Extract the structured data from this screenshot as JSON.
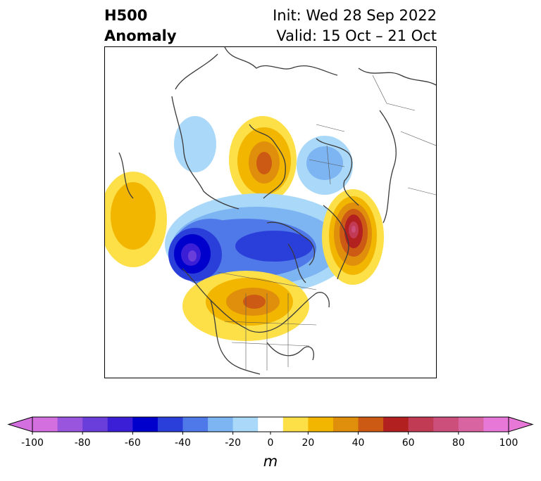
{
  "header": {
    "title_line1": "H500",
    "title_line2": "Anomaly",
    "init_text": "Init: Wed 28 Sep 2022",
    "valid_text": "Valid: 15 Oct – 21 Oct"
  },
  "colorbar": {
    "units": "m",
    "ticks": [
      "-100",
      "-80",
      "-60",
      "-40",
      "-20",
      "0",
      "20",
      "40",
      "60",
      "80",
      "100"
    ],
    "tick_values": [
      -100,
      -80,
      -60,
      -40,
      -20,
      0,
      20,
      40,
      60,
      80,
      100
    ],
    "bins": [
      -100,
      -90,
      -80,
      -70,
      -60,
      -50,
      -40,
      -30,
      -20,
      -10,
      10,
      20,
      30,
      40,
      50,
      60,
      70,
      80,
      90,
      100
    ],
    "colors": [
      "#d46fe0",
      "#9a55df",
      "#6a3edb",
      "#3a1fd6",
      "#0000cc",
      "#2a3fd9",
      "#4f78e8",
      "#7db4f2",
      "#aad8f8",
      "#ffffff",
      "#fde047",
      "#f2b600",
      "#e08f0c",
      "#cc5a14",
      "#b22020",
      "#c23b55",
      "#cc4e7a",
      "#d864a2",
      "#e878d8"
    ],
    "extend_low_color": "#d46fe0",
    "extend_high_color": "#e878d8"
  }
}
